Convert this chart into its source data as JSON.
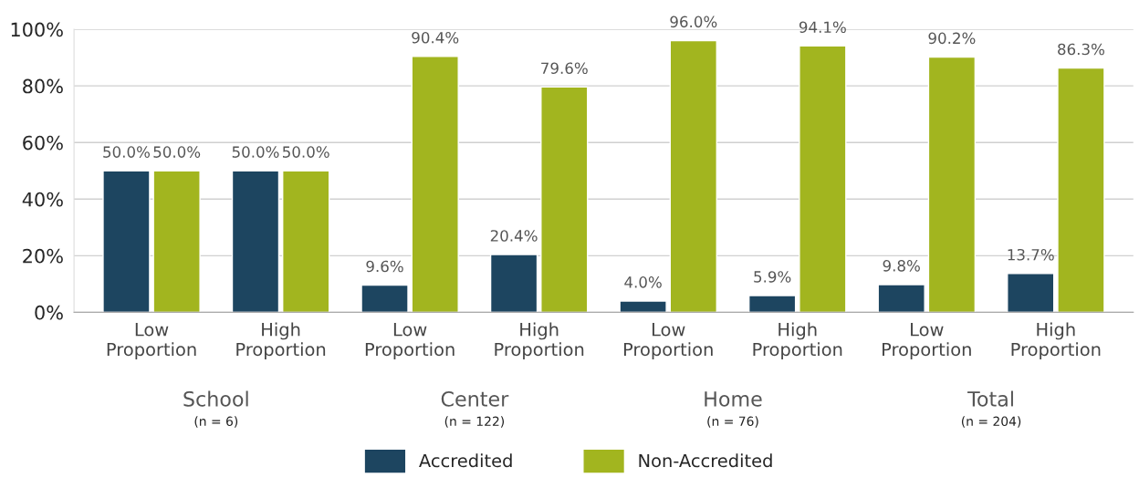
{
  "chart_data": {
    "type": "bar",
    "categories": [
      "Low\nProportion",
      "High\nProportion",
      "Low\nProportion",
      "High\nProportion",
      "Low\nProportion",
      "High\nProportion",
      "Low\nProportion",
      "High\nProportion"
    ],
    "series": [
      {
        "name": "Accredited",
        "color": "#1d4560",
        "values": [
          50.0,
          50.0,
          9.6,
          20.4,
          4.0,
          5.9,
          9.8,
          13.7
        ],
        "value_labels": [
          "50.0%",
          "50.0%",
          "9.6%",
          "20.4%",
          "4.0%",
          "5.9%",
          "9.8%",
          "13.7%"
        ]
      },
      {
        "name": "Non-Accredited",
        "color": "#a2b51f",
        "values": [
          50.0,
          50.0,
          90.4,
          79.6,
          96.0,
          94.1,
          90.2,
          86.3
        ],
        "value_labels": [
          "50.0%",
          "50.0%",
          "90.4%",
          "79.6%",
          "96.0%",
          "94.1%",
          "90.2%",
          "86.3%"
        ]
      }
    ],
    "ylim": [
      0,
      100
    ],
    "yticks": [
      {
        "value": 0,
        "label": "0%"
      },
      {
        "value": 20,
        "label": "20%"
      },
      {
        "value": 40,
        "label": "40%"
      },
      {
        "value": 60,
        "label": "60%"
      },
      {
        "value": 80,
        "label": "80%"
      },
      {
        "value": 100,
        "label": "100%"
      }
    ],
    "annotations": [
      "School",
      "(n = 6)",
      "Center",
      "(n = 122)",
      "Home",
      "(n = 76)",
      "Total",
      "(n = 204)"
    ],
    "grid": "y",
    "legend": "bottom"
  }
}
